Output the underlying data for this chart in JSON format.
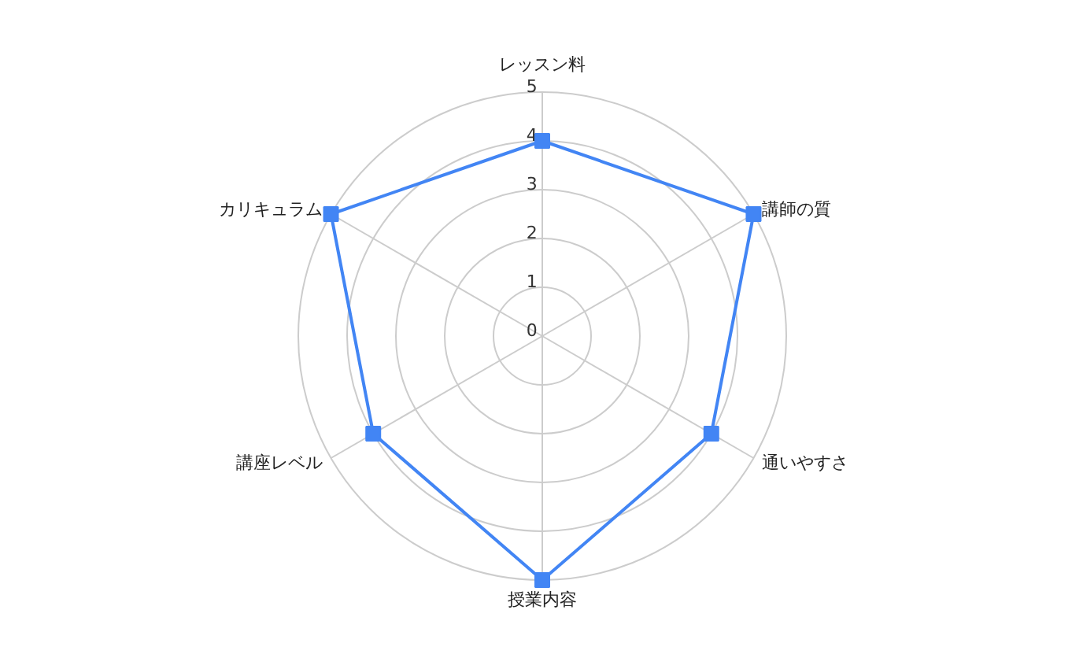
{
  "chart_data": {
    "type": "radar",
    "categories": [
      "レッスン料",
      "講師の質",
      "通いやすさ",
      "授業内容",
      "講座レベル",
      "カリキュラム"
    ],
    "series": [
      {
        "color": "#4285f4",
        "values": [
          4,
          5,
          4,
          5,
          4,
          5
        ]
      }
    ],
    "ylim": [
      0,
      5
    ],
    "yticks": [
      0,
      1,
      2,
      3,
      4,
      5
    ],
    "grid": true,
    "marker": "square"
  }
}
